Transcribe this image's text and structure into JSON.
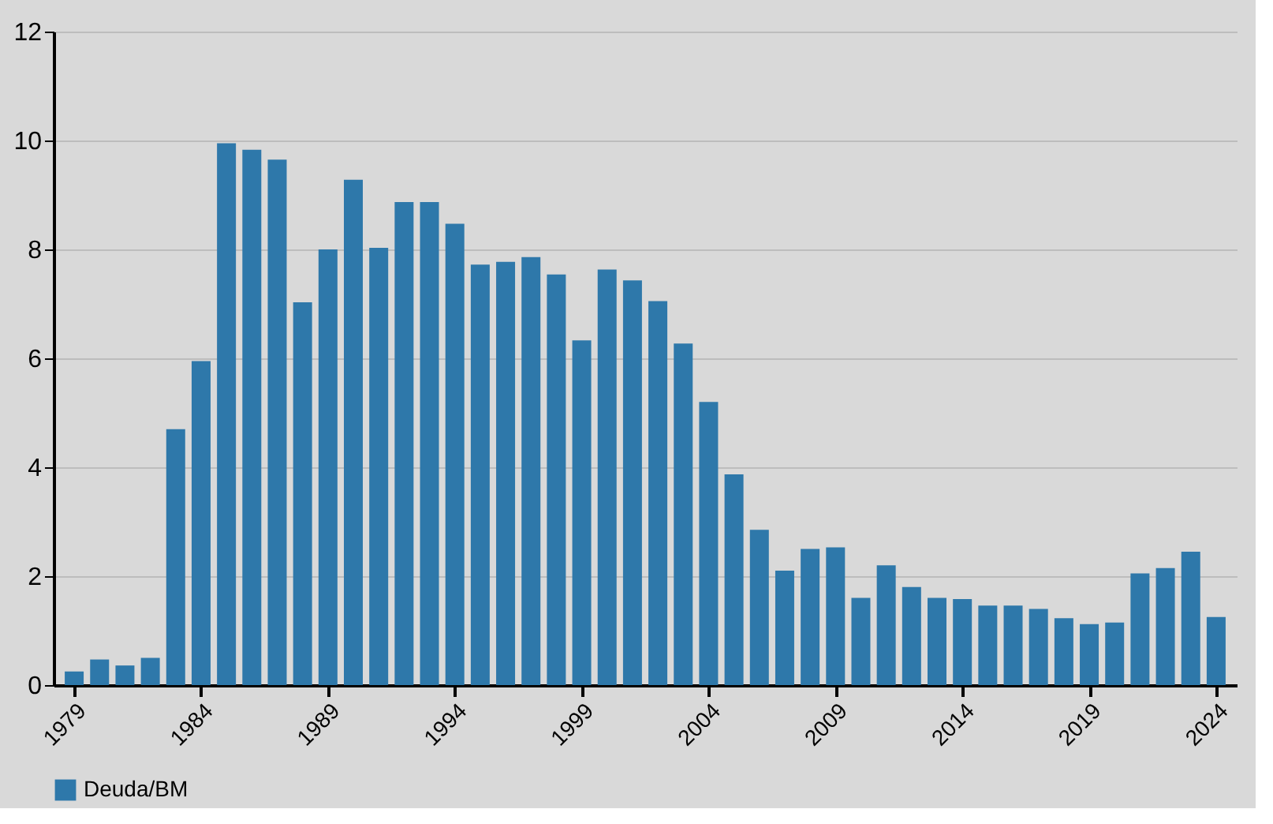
{
  "chart_data": {
    "type": "bar",
    "categories": [
      "1979",
      null,
      null,
      null,
      null,
      "1984",
      null,
      null,
      null,
      null,
      "1989",
      null,
      null,
      null,
      null,
      "1994",
      null,
      null,
      null,
      null,
      "1999",
      null,
      null,
      null,
      null,
      "2004",
      null,
      null,
      null,
      null,
      "2009",
      null,
      null,
      null,
      null,
      "2014",
      null,
      null,
      null,
      null,
      "2019",
      null,
      null,
      null,
      null,
      "2024"
    ],
    "series": [
      {
        "name": "Deuda/BM",
        "color": "#2e78aa",
        "values": [
          0.25,
          0.47,
          0.36,
          0.5,
          4.7,
          5.95,
          9.95,
          9.83,
          9.65,
          7.03,
          8.0,
          9.28,
          8.03,
          8.87,
          8.87,
          8.47,
          7.72,
          7.77,
          7.86,
          7.54,
          6.33,
          7.63,
          7.43,
          7.05,
          6.27,
          5.2,
          3.87,
          2.85,
          2.1,
          2.5,
          2.53,
          1.6,
          2.2,
          1.8,
          1.6,
          1.58,
          1.46,
          1.46,
          1.4,
          1.23,
          1.12,
          1.15,
          2.05,
          2.15,
          2.45,
          1.25
        ]
      }
    ],
    "ylim": [
      0,
      12
    ],
    "yticks": [
      0,
      2,
      4,
      6,
      8,
      10,
      12
    ],
    "grid": "y",
    "legend": "bottom"
  }
}
